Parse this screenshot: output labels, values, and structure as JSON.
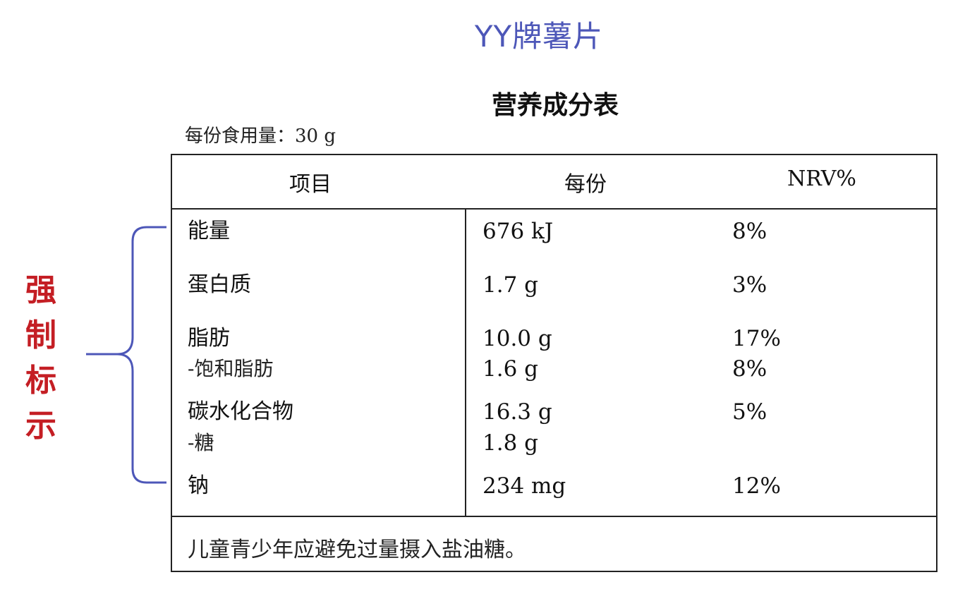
{
  "brand_title": "YY牌薯片",
  "table_title": "营养成分表",
  "serving_size": "每份食用量：30 g",
  "headers": {
    "item": "项目",
    "per_serving": "每份",
    "nrv": "NRV%"
  },
  "rows": [
    {
      "name": "能量",
      "value": "676 kJ",
      "nrv": "8%"
    },
    {
      "name": "蛋白质",
      "value": "1.7 g",
      "nrv": "3%"
    },
    {
      "name": "脂肪",
      "value": "10.0 g",
      "nrv": "17%"
    },
    {
      "name": "-饱和脂肪",
      "value": "1.6 g",
      "nrv": "8%"
    },
    {
      "name": "碳水化合物",
      "value": "16.3 g",
      "nrv": "5%"
    },
    {
      "name": "-糖",
      "value": "1.8 g",
      "nrv": ""
    },
    {
      "name": "钠",
      "value": "234 mg",
      "nrv": "12%"
    }
  ],
  "footer_note": "儿童青少年应避免过量摄入盐油糖。",
  "annotation": {
    "chars": [
      "强",
      "制",
      "标",
      "示"
    ],
    "color": "#c41e24",
    "brace_color": "#4d57b8"
  }
}
